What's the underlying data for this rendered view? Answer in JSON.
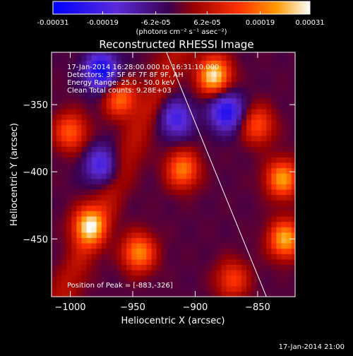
{
  "colorbar": {
    "ticks": [
      "-0.00031",
      "-0.00019",
      "-6.2e-05",
      "6.2e-05",
      "0.00019",
      "0.00031"
    ],
    "tick_values": [
      -0.00031,
      -0.00019,
      -6.2e-05,
      6.2e-05,
      0.00019,
      0.00031
    ],
    "range": [
      -0.00031,
      0.00031
    ],
    "unit_label": "(photons cm⁻² s⁻¹ asec⁻²)",
    "colormap": [
      "#0000ff",
      "#5a2bd8",
      "#3a0050",
      "#9a0000",
      "#ff3000",
      "#ff9a00",
      "#ffffff"
    ]
  },
  "title": "Reconstructed RHESSI Image",
  "info": {
    "time_range": "17-Jan-2014 16:28:00.000 to 16:31:10.000",
    "detectors": "Detectors: 3F 5F 6F 7F 8F 9F, AH",
    "energy": "Energy Range: 25.0 - 50.0 keV",
    "clean": "Clean     Total counts: 9.28E+03",
    "peak": "Position of Peak = [-883,-326]"
  },
  "footer": "17-Jan-2014 21:00",
  "chart_data": {
    "type": "heatmap",
    "title": "Reconstructed RHESSI Image",
    "xlabel": "Heliocentric X (arcsec)",
    "ylabel": "Heliocentric Y (arcsec)",
    "xlim": [
      -1015,
      -820
    ],
    "ylim": [
      -493,
      -311
    ],
    "x_ticks": [
      -1000,
      -950,
      -900,
      -850
    ],
    "y_ticks": [
      -350,
      -400,
      -450
    ],
    "x_tick_labels": [
      "−1000",
      "−950",
      "−900",
      "−850"
    ],
    "y_tick_labels": [
      "−350",
      "−400",
      "−450"
    ],
    "limb_line": {
      "x": [
        -923,
        -843
      ],
      "y": [
        -311,
        -493
      ]
    },
    "peak": {
      "x": -883,
      "y": -326
    },
    "value_range": [
      -0.00031,
      0.00031
    ],
    "bright_sources": [
      {
        "x": -885,
        "y": -328,
        "level": 1.0
      },
      {
        "x": -985,
        "y": -440,
        "level": 0.85
      },
      {
        "x": -960,
        "y": -345,
        "level": 0.65
      },
      {
        "x": -910,
        "y": -398,
        "level": 0.7
      },
      {
        "x": -830,
        "y": -405,
        "level": 0.8
      },
      {
        "x": -828,
        "y": -450,
        "level": 0.85
      },
      {
        "x": -945,
        "y": -460,
        "level": 0.75
      },
      {
        "x": -1000,
        "y": -370,
        "level": 0.6
      },
      {
        "x": -850,
        "y": -365,
        "level": 0.55
      },
      {
        "x": -870,
        "y": -480,
        "level": 0.5
      }
    ],
    "dark_regions": [
      {
        "x": -975,
        "y": -325,
        "level": -0.9
      },
      {
        "x": -875,
        "y": -355,
        "level": -0.8
      },
      {
        "x": -915,
        "y": -360,
        "level": -0.6
      },
      {
        "x": -975,
        "y": -395,
        "level": -0.6
      }
    ]
  }
}
